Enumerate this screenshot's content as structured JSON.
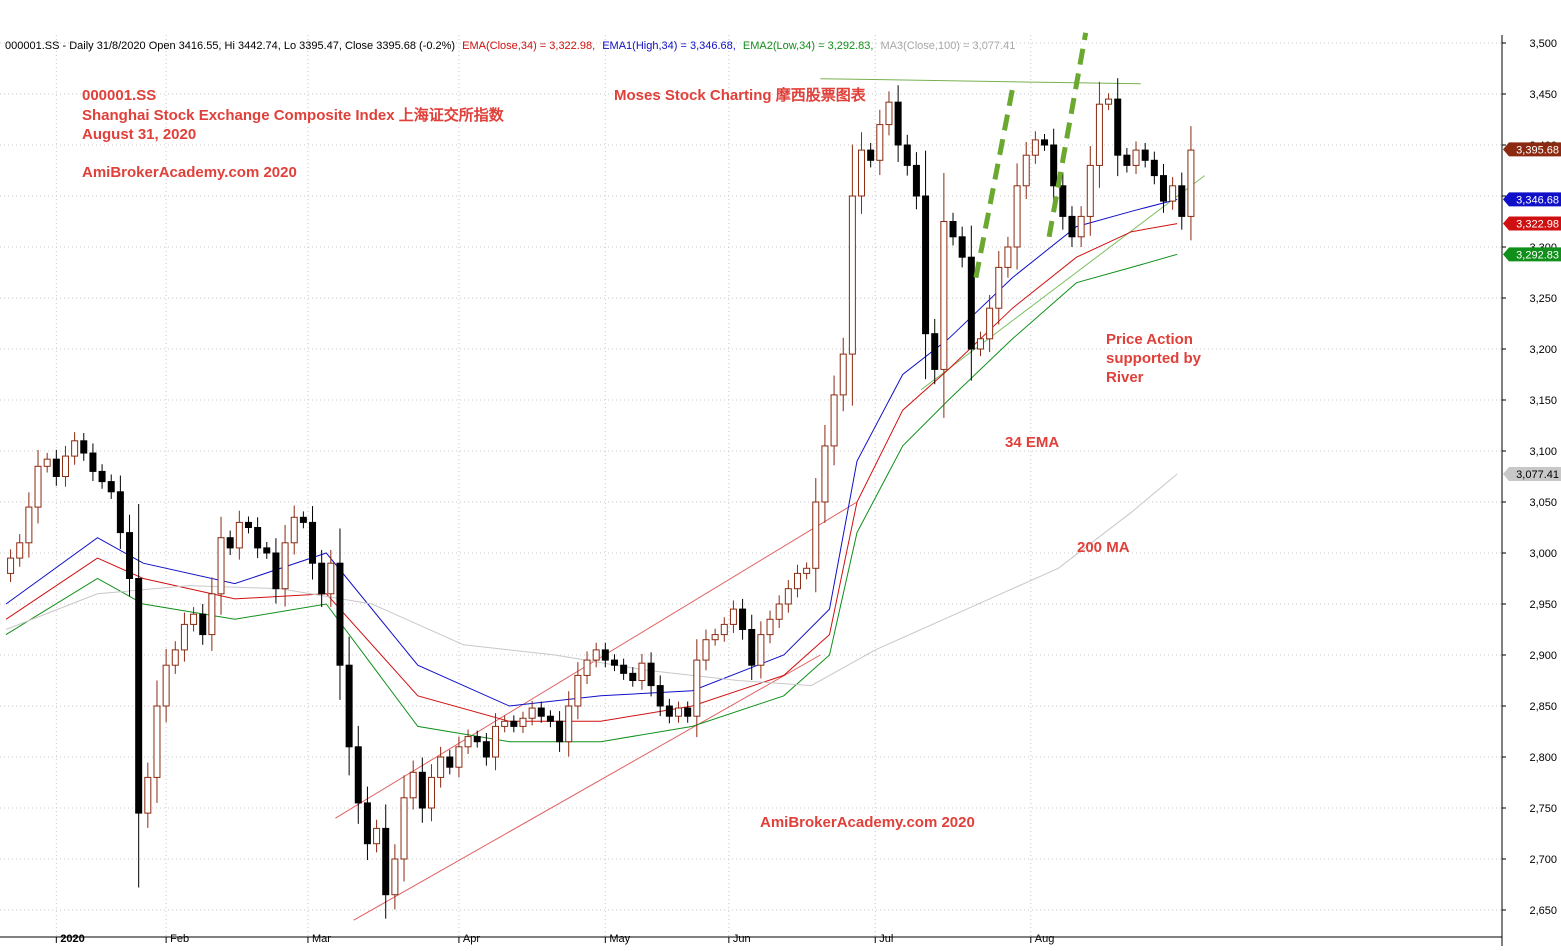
{
  "chart_data": {
    "type": "candlestick",
    "header": {
      "symbol_info": "000001.SS - Daily 31/8/2020 Open 3416.55, Hi 3442.74, Lo 3395.47, Close 3395.68 (-0.2%)",
      "ema_close": "EMA(Close,34) = 3,322.98,",
      "ema_high": "EMA1(High,34) = 3,346.68,",
      "ema_low": "EMA2(Low,34) = 3,292.83,",
      "ma_close": "MA3(Close,100) = 3,077.41"
    },
    "annotations": {
      "symbol": "000001.SS",
      "name": "Shanghai Stock Exchange Composite Index 上海证交所指数",
      "date": "August 31, 2020",
      "site": "AmiBrokerAcademy.com  2020",
      "brand": "Moses Stock Charting 摩西股票图表",
      "price_action": [
        "Price Action",
        "supported by",
        "River"
      ],
      "ema34": "34 EMA",
      "ma200": "200 MA",
      "footer": "AmiBrokerAcademy.com 2020"
    },
    "y_axis": {
      "range": [
        2630,
        3510
      ],
      "ticks": [
        "3,500",
        "3,450",
        "3,400",
        "3,350",
        "3,300",
        "3,250",
        "3,200",
        "3,150",
        "3,100",
        "3,050",
        "3,000",
        "2,950",
        "2,900",
        "2,850",
        "2,800",
        "2,750",
        "2,700",
        "2,650"
      ]
    },
    "x_axis": {
      "months": [
        "2020",
        "Feb",
        "Mar",
        "Apr",
        "May",
        "Jun",
        "Jul",
        "Aug"
      ]
    },
    "price_tags": [
      {
        "label": "3,395.68",
        "value": 3395.68,
        "color": "#8b2a10"
      },
      {
        "label": "3,346.68",
        "value": 3346.68,
        "color": "#1010c8"
      },
      {
        "label": "3,322.98",
        "value": 3322.98,
        "color": "#d01010"
      },
      {
        "label": "3,292.83",
        "value": 3292.83,
        "color": "#10901a"
      },
      {
        "label": "3,077.41",
        "value": 3077.41,
        "color": "#c8c8c8"
      }
    ],
    "closes": [
      2995,
      3010,
      3045,
      3085,
      3092,
      3075,
      3095,
      3110,
      3098,
      3080,
      3070,
      3060,
      3020,
      2975,
      2745,
      2780,
      2850,
      2890,
      2905,
      2930,
      2940,
      2920,
      2960,
      3015,
      3005,
      3030,
      3025,
      3005,
      3000,
      2965,
      3010,
      3035,
      3030,
      2990,
      2960,
      2990,
      2890,
      2810,
      2755,
      2715,
      2730,
      2665,
      2700,
      2760,
      2785,
      2750,
      2780,
      2800,
      2790,
      2810,
      2820,
      2815,
      2800,
      2830,
      2835,
      2830,
      2838,
      2848,
      2840,
      2835,
      2815,
      2850,
      2880,
      2895,
      2905,
      2895,
      2890,
      2882,
      2875,
      2892,
      2870,
      2850,
      2840,
      2848,
      2840,
      2895,
      2915,
      2920,
      2930,
      2945,
      2925,
      2890,
      2920,
      2935,
      2950,
      2965,
      2980,
      2985,
      3050,
      3105,
      3155,
      3195,
      3350,
      3395,
      3385,
      3420,
      3442,
      3400,
      3380,
      3350,
      3215,
      3180,
      3325,
      3310,
      3290,
      3200,
      3210,
      3240,
      3280,
      3300,
      3360,
      3390,
      3405,
      3400,
      3360,
      3330,
      3310,
      3330,
      3380,
      3440,
      3445,
      3390,
      3380,
      3395,
      3385,
      3370,
      3345,
      3360,
      3330,
      3395
    ],
    "series": [
      {
        "name": "EMA(Close,34)",
        "color": "#d01010",
        "points": [
          [
            0,
            2935
          ],
          [
            10,
            2995
          ],
          [
            15,
            2975
          ],
          [
            25,
            2955
          ],
          [
            35,
            2960
          ],
          [
            45,
            2860
          ],
          [
            55,
            2835
          ],
          [
            65,
            2835
          ],
          [
            75,
            2850
          ],
          [
            85,
            2880
          ],
          [
            90,
            2920
          ],
          [
            93,
            3050
          ],
          [
            98,
            3140
          ],
          [
            103,
            3180
          ],
          [
            110,
            3240
          ],
          [
            117,
            3290
          ],
          [
            123,
            3315
          ],
          [
            128,
            3322.98
          ]
        ]
      },
      {
        "name": "EMA1(High,34)",
        "color": "#1010c8",
        "points": [
          [
            0,
            2950
          ],
          [
            10,
            3015
          ],
          [
            15,
            2990
          ],
          [
            25,
            2970
          ],
          [
            35,
            3000
          ],
          [
            45,
            2890
          ],
          [
            55,
            2850
          ],
          [
            65,
            2860
          ],
          [
            75,
            2865
          ],
          [
            85,
            2900
          ],
          [
            90,
            2945
          ],
          [
            93,
            3090
          ],
          [
            98,
            3175
          ],
          [
            103,
            3210
          ],
          [
            110,
            3270
          ],
          [
            117,
            3320
          ],
          [
            123,
            3335
          ],
          [
            128,
            3346.68
          ]
        ]
      },
      {
        "name": "EMA2(Low,34)",
        "color": "#10901a",
        "points": [
          [
            0,
            2920
          ],
          [
            10,
            2975
          ],
          [
            15,
            2950
          ],
          [
            25,
            2935
          ],
          [
            35,
            2950
          ],
          [
            45,
            2830
          ],
          [
            55,
            2815
          ],
          [
            65,
            2815
          ],
          [
            75,
            2830
          ],
          [
            85,
            2860
          ],
          [
            90,
            2900
          ],
          [
            93,
            3020
          ],
          [
            98,
            3105
          ],
          [
            103,
            3150
          ],
          [
            110,
            3210
          ],
          [
            117,
            3265
          ],
          [
            123,
            3280
          ],
          [
            128,
            3292.83
          ]
        ]
      },
      {
        "name": "MA3(Close,100)",
        "color": "#c8c8c8",
        "points": [
          [
            0,
            2925
          ],
          [
            10,
            2960
          ],
          [
            20,
            2968
          ],
          [
            30,
            2965
          ],
          [
            40,
            2950
          ],
          [
            50,
            2910
          ],
          [
            60,
            2900
          ],
          [
            70,
            2885
          ],
          [
            80,
            2875
          ],
          [
            88,
            2870
          ],
          [
            95,
            2905
          ],
          [
            105,
            2945
          ],
          [
            115,
            2985
          ],
          [
            123,
            3040
          ],
          [
            128,
            3077.41
          ]
        ]
      }
    ],
    "trendlines": [
      {
        "color": "#e06060",
        "from": [
          36,
          2740
        ],
        "to": [
          93,
          3050
        ]
      },
      {
        "color": "#e06060",
        "from": [
          38,
          2640
        ],
        "to": [
          89,
          2900
        ]
      },
      {
        "color": "#7cc060",
        "from": [
          100,
          3160
        ],
        "to": [
          131,
          3370
        ]
      },
      {
        "color": "#78b050",
        "from": [
          89,
          3465
        ],
        "to": [
          124,
          3460
        ]
      }
    ],
    "dashed_lines": [
      {
        "color": "#6aa830",
        "from": [
          106,
          3270
        ],
        "to": [
          110,
          3455
        ]
      },
      {
        "color": "#6aa830",
        "from": [
          114,
          3310
        ],
        "to": [
          118,
          3510
        ]
      }
    ]
  }
}
